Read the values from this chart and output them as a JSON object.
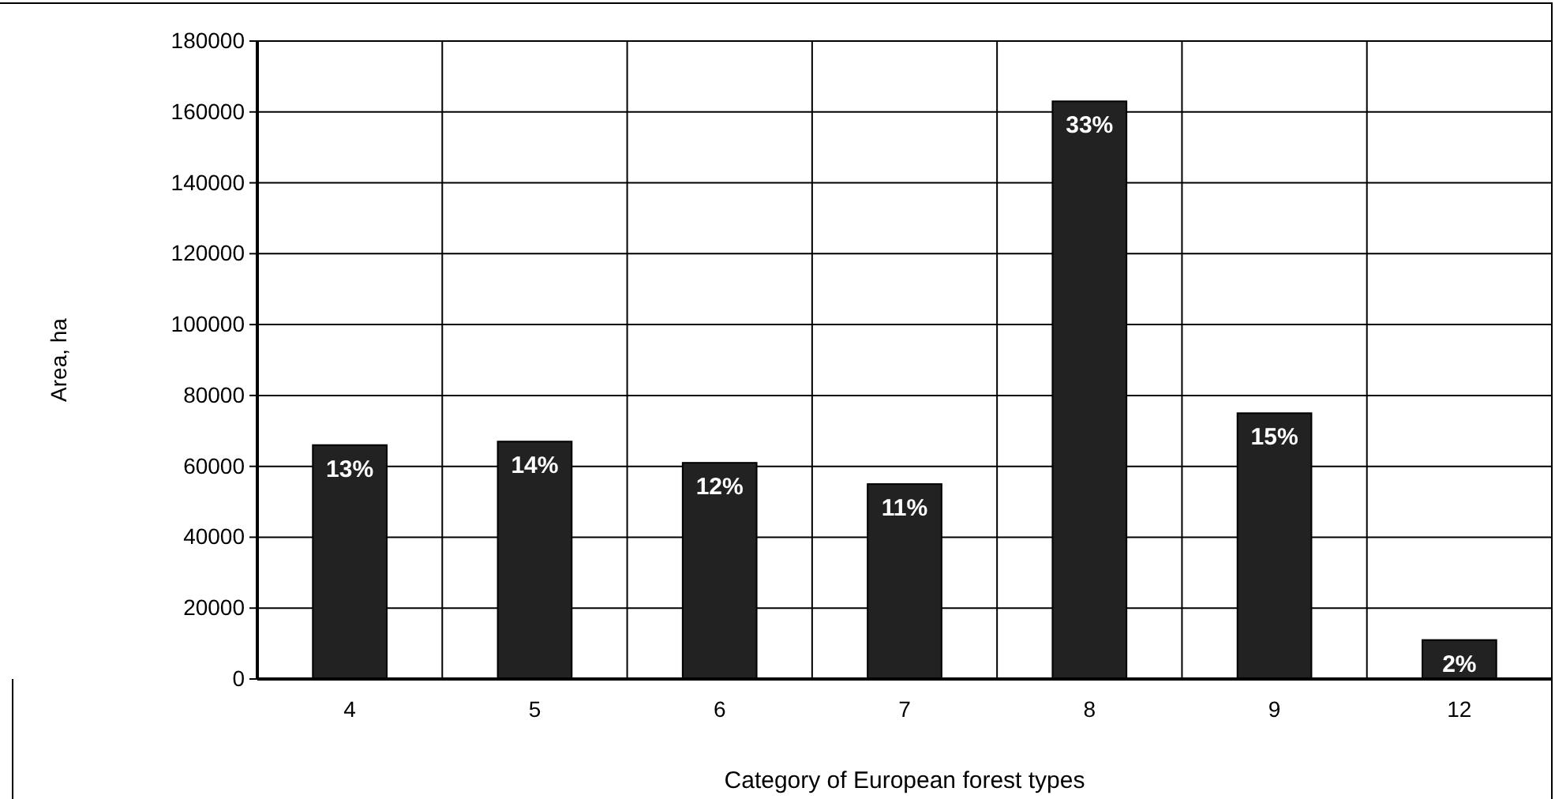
{
  "chart_data": {
    "type": "bar",
    "xlabel": "Category of European forest types",
    "ylabel": "Area, ha",
    "categories": [
      "4",
      "5",
      "6",
      "7",
      "8",
      "9",
      "12"
    ],
    "values": [
      66000,
      67000,
      61000,
      55000,
      163000,
      75000,
      11000
    ],
    "annotations": [
      {
        "text": "13%",
        "x": "4",
        "y": 66000
      },
      {
        "text": "14%",
        "x": "5",
        "y": 67000
      },
      {
        "text": "12%",
        "x": "6",
        "y": 61000
      },
      {
        "text": "11%",
        "x": "7",
        "y": 55000
      },
      {
        "text": "33%",
        "x": "8",
        "y": 163000
      },
      {
        "text": "15%",
        "x": "9",
        "y": 75000
      },
      {
        "text": "2%",
        "x": "12",
        "y": 11000
      }
    ],
    "color": "#222222",
    "ylim": [
      0,
      180000
    ],
    "yticks": [
      0,
      20000,
      40000,
      60000,
      80000,
      100000,
      120000,
      140000,
      160000,
      180000
    ],
    "grid": true
  }
}
